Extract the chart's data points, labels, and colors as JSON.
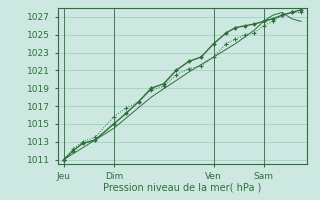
{
  "xlabel": "Pression niveau de la mer( hPa )",
  "bg_color": "#cce8e0",
  "grid_color": "#99ccbb",
  "line_color": "#2d6e3a",
  "xlim": [
    0,
    80
  ],
  "ylim": [
    1010.5,
    1028.0
  ],
  "yticks": [
    1011,
    1013,
    1015,
    1017,
    1019,
    1021,
    1023,
    1025,
    1027
  ],
  "xtick_positions": [
    2,
    18,
    50,
    66
  ],
  "xtick_labels": [
    "Jeu",
    "Dim",
    "Ven",
    "Sam"
  ],
  "vline_positions": [
    2,
    18,
    50,
    66
  ],
  "line1_x": [
    2,
    5,
    8,
    12,
    18,
    22,
    26,
    30,
    34,
    38,
    42,
    46,
    50,
    54,
    57,
    60,
    63,
    66,
    69,
    72,
    75,
    78
  ],
  "line1_y": [
    1011.0,
    1012.2,
    1013.0,
    1013.5,
    1015.8,
    1016.8,
    1017.5,
    1018.8,
    1019.2,
    1020.5,
    1021.2,
    1021.5,
    1022.5,
    1024.0,
    1024.5,
    1025.0,
    1025.2,
    1026.0,
    1026.5,
    1027.2,
    1027.5,
    1027.5
  ],
  "line2_x": [
    2,
    5,
    8,
    12,
    18,
    22,
    26,
    30,
    34,
    38,
    42,
    46,
    50,
    54,
    57,
    60,
    63,
    66,
    69,
    72,
    75,
    78
  ],
  "line2_y": [
    1011.0,
    1012.0,
    1012.8,
    1013.2,
    1015.0,
    1016.2,
    1017.5,
    1019.0,
    1019.5,
    1021.0,
    1022.0,
    1022.5,
    1024.0,
    1025.2,
    1025.8,
    1026.0,
    1026.2,
    1026.5,
    1026.8,
    1027.2,
    1027.5,
    1027.8
  ],
  "line3_x": [
    2,
    18,
    30,
    42,
    50,
    57,
    63,
    66,
    69,
    72,
    75,
    78
  ],
  "line3_y": [
    1011.0,
    1014.5,
    1018.0,
    1020.8,
    1022.5,
    1024.0,
    1025.5,
    1026.5,
    1027.2,
    1027.5,
    1026.8,
    1026.5
  ]
}
